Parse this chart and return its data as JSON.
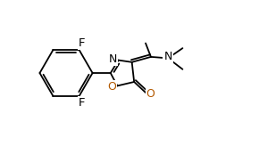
{
  "bg_color": "#ffffff",
  "bond_color": "#000000",
  "N_color": "#000000",
  "O_color": "#b35900",
  "F_color": "#000000",
  "lw": 1.3,
  "figsize": [
    2.9,
    1.64
  ],
  "dpi": 100,
  "xlim": [
    0,
    9.5
  ],
  "ylim": [
    0,
    5.5
  ]
}
